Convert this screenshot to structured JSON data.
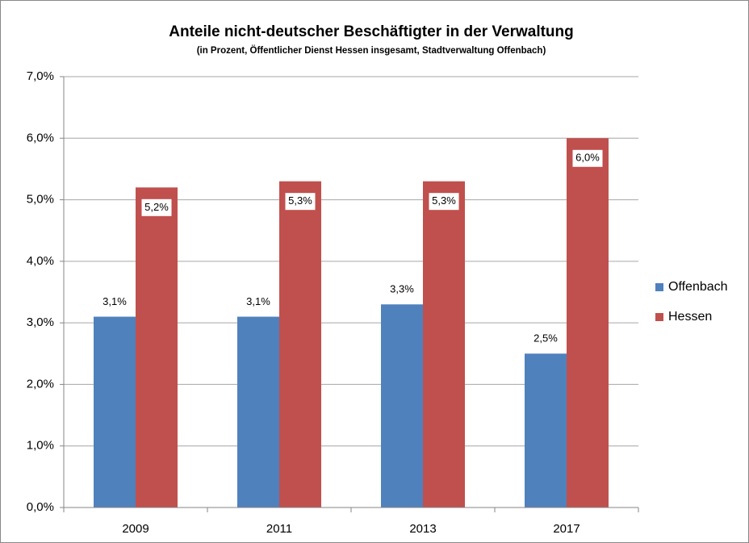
{
  "chart_data": {
    "type": "bar",
    "title": "Anteile nicht-deutscher Beschäftigter in der Verwaltung",
    "subtitle": "(in Prozent, Öffentlicher Dienst Hessen insgesamt, Stadtverwaltung Offenbach)",
    "categories": [
      "2009",
      "2011",
      "2013",
      "2017"
    ],
    "series": [
      {
        "name": "Offenbach",
        "color": "#4f81bd",
        "values": [
          3.1,
          3.1,
          3.3,
          2.5
        ],
        "value_labels": [
          "3,1%",
          "3,1%",
          "3,3%",
          "2,5%"
        ]
      },
      {
        "name": "Hessen",
        "color": "#c0504d",
        "values": [
          5.2,
          5.3,
          5.3,
          6.0
        ],
        "value_labels": [
          "5,2%",
          "5,3%",
          "5,3%",
          "6,0%"
        ]
      }
    ],
    "ylim": [
      0,
      7
    ],
    "yticks": [
      {
        "value": 0,
        "label": "0,0%"
      },
      {
        "value": 1,
        "label": "1,0%"
      },
      {
        "value": 2,
        "label": "2,0%"
      },
      {
        "value": 3,
        "label": "3,0%"
      },
      {
        "value": 4,
        "label": "4,0%"
      },
      {
        "value": 5,
        "label": "5,0%"
      },
      {
        "value": 6,
        "label": "6,0%"
      },
      {
        "value": 7,
        "label": "7,0%"
      }
    ],
    "grid": true,
    "legend": "right"
  }
}
